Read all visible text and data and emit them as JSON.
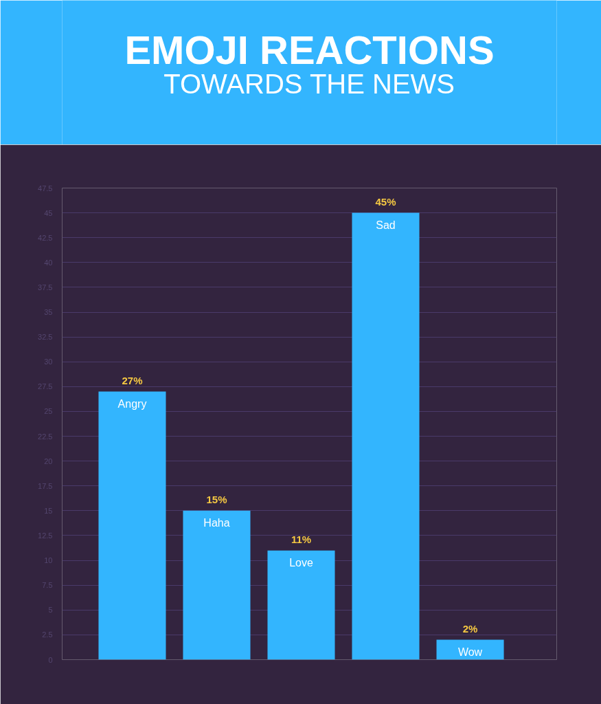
{
  "chart_data": {
    "type": "bar",
    "title": "EMOJI REACTIONS",
    "subtitle": "TOWARDS THE NEWS",
    "categories": [
      "Angry",
      "Haha",
      "Love",
      "Sad",
      "Wow"
    ],
    "values": [
      27,
      15,
      11,
      45,
      2
    ],
    "color": "#33b5fe",
    "value_labels": [
      "27%",
      "15%",
      "11%",
      "45%",
      "2%"
    ],
    "ylim": [
      0,
      47.5
    ],
    "yticks": [
      0,
      2.5,
      5,
      7.5,
      10,
      12.5,
      15,
      17.5,
      20,
      22.5,
      25,
      27.5,
      30,
      32.5,
      35,
      37.5,
      40,
      42.5,
      45,
      47.5
    ],
    "grid": "y"
  }
}
